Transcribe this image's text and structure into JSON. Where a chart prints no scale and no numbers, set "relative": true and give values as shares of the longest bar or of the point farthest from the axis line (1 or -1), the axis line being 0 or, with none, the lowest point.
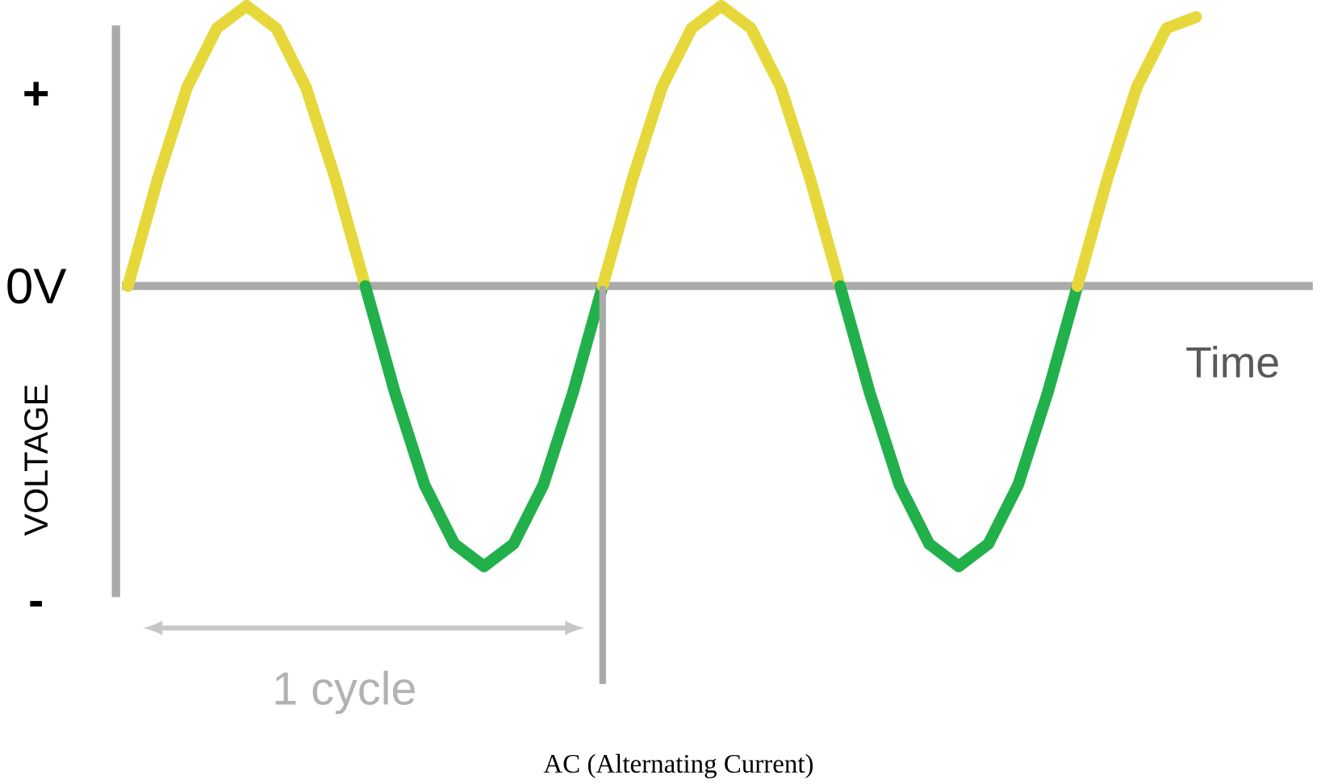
{
  "chart_data": {
    "type": "line",
    "relative": true,
    "title": "AC (Alternating Current)",
    "xlabel": "Time",
    "ylabel": "VOLTAGE",
    "categories": [
      null,
      null,
      null,
      null,
      null,
      null,
      null,
      null,
      null,
      null,
      null,
      null,
      null,
      null,
      null,
      null,
      null,
      null,
      null,
      null,
      null,
      null,
      null,
      null,
      null,
      null,
      null,
      null,
      null,
      null,
      null,
      null,
      null,
      null,
      null,
      null,
      null
    ],
    "series": [
      {
        "color": "#e6d83a",
        "values": [
          0,
          0.38,
          0.71,
          0.92,
          1,
          0.92,
          0.71,
          0.38,
          0,
          null,
          null,
          null,
          null,
          null,
          null,
          null,
          null,
          null,
          null,
          null,
          null,
          null,
          null,
          null,
          null,
          null,
          null,
          null,
          null,
          null,
          null,
          null,
          null,
          null,
          null,
          null,
          null
        ]
      },
      {
        "color": "#22b04b",
        "values": [
          null,
          null,
          null,
          null,
          null,
          null,
          null,
          null,
          0,
          -0.38,
          -0.71,
          -0.92,
          -1,
          -0.92,
          -0.71,
          -0.38,
          0,
          null,
          null,
          null,
          null,
          null,
          null,
          null,
          null,
          null,
          null,
          null,
          null,
          null,
          null,
          null,
          null,
          null,
          null,
          null,
          null
        ]
      },
      {
        "color": "#e6d83a",
        "values": [
          null,
          null,
          null,
          null,
          null,
          null,
          null,
          null,
          null,
          null,
          null,
          null,
          null,
          null,
          null,
          null,
          0,
          0.38,
          0.71,
          0.92,
          1,
          0.92,
          0.71,
          0.38,
          0,
          null,
          null,
          null,
          null,
          null,
          null,
          null,
          null,
          null,
          null,
          null,
          null
        ]
      },
      {
        "color": "#22b04b",
        "values": [
          null,
          null,
          null,
          null,
          null,
          null,
          null,
          null,
          null,
          null,
          null,
          null,
          null,
          null,
          null,
          null,
          null,
          null,
          null,
          null,
          null,
          null,
          null,
          null,
          0,
          -0.38,
          -0.71,
          -0.92,
          -1,
          -0.92,
          -0.71,
          -0.38,
          0,
          null,
          null,
          null,
          null
        ]
      },
      {
        "color": "#e6d83a",
        "values": [
          null,
          null,
          null,
          null,
          null,
          null,
          null,
          null,
          null,
          null,
          null,
          null,
          null,
          null,
          null,
          null,
          null,
          null,
          null,
          null,
          null,
          null,
          null,
          null,
          null,
          null,
          null,
          null,
          null,
          null,
          null,
          null,
          0,
          0.38,
          0.71,
          0.92,
          0.96
        ]
      }
    ],
    "annotations": [
      "+",
      "0V",
      "-",
      "1 cycle"
    ],
    "marker": "none",
    "line_style": "solid"
  }
}
